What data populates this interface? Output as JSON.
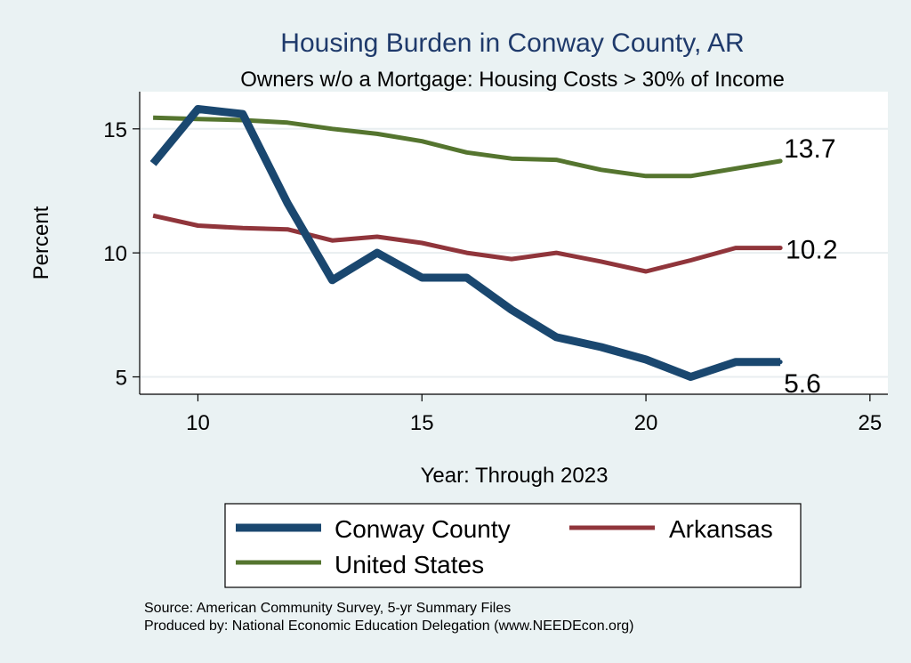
{
  "chart_data": {
    "type": "line",
    "title": "Housing Burden in Conway County, AR",
    "subtitle": "Owners w/o a Mortgage: Housing Costs > 30% of Income",
    "xlabel": "Year: Through 2023",
    "ylabel": "Percent",
    "xlim": [
      8.7,
      25.4
    ],
    "ylim": [
      4.3,
      16.5
    ],
    "xticks": [
      10,
      15,
      20,
      25
    ],
    "yticks": [
      5,
      10,
      15
    ],
    "x": [
      9,
      10,
      11,
      12,
      13,
      14,
      15,
      16,
      17,
      18,
      19,
      20,
      21,
      22,
      23
    ],
    "series": [
      {
        "name": "Conway County",
        "color": "#1a476f",
        "width": 9,
        "values": [
          13.6,
          15.8,
          15.6,
          12.0,
          8.9,
          10.0,
          9.0,
          9.0,
          7.7,
          6.6,
          6.2,
          5.7,
          5.0,
          5.6,
          5.6
        ],
        "end_label": "5.6"
      },
      {
        "name": "Arkansas",
        "color": "#90353b",
        "width": 5,
        "values": [
          11.5,
          11.1,
          11.0,
          10.95,
          10.5,
          10.65,
          10.4,
          10.0,
          9.75,
          10.0,
          9.65,
          9.25,
          9.7,
          10.2,
          10.2
        ],
        "end_label": "10.2"
      },
      {
        "name": "United States",
        "color": "#55752f",
        "width": 5,
        "values": [
          15.45,
          15.4,
          15.35,
          15.25,
          15.0,
          14.8,
          14.5,
          14.05,
          13.8,
          13.75,
          13.35,
          13.1,
          13.1,
          13.4,
          13.7
        ],
        "end_label": "13.7"
      }
    ],
    "grid": true,
    "legend": "bottom"
  },
  "source": {
    "line1": "Source: American Community Survey, 5-yr Summary Files",
    "line2": "Produced by: National Economic Education Delegation (www.NEEDEcon.org)"
  }
}
